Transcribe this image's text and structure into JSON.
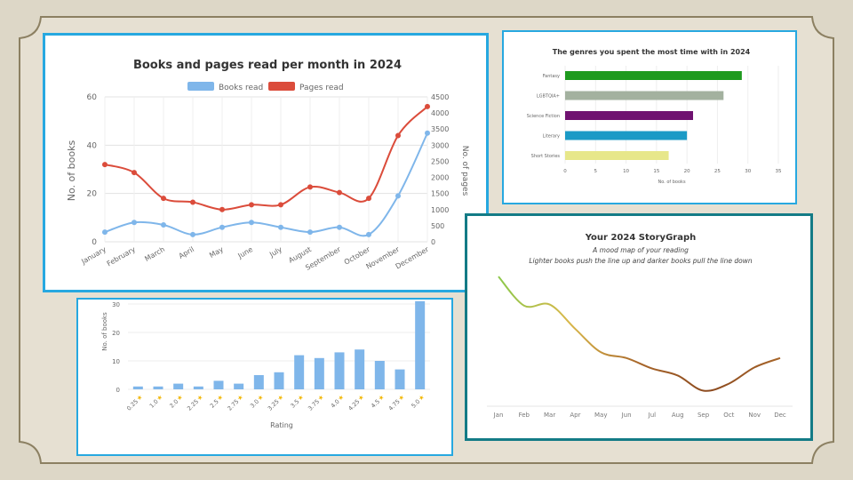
{
  "chart_data": [
    {
      "type": "line",
      "title": "Books and pages read per month in 2024",
      "ylabel": "No. of books",
      "y2label": "No. of pages",
      "ylim": [
        0,
        60
      ],
      "y2lim": [
        0,
        4500
      ],
      "yticks": [
        "0",
        "20",
        "40",
        "60"
      ],
      "y2ticks": [
        "0",
        "500",
        "1000",
        "1500",
        "2000",
        "2500",
        "3000",
        "3500",
        "4000",
        "4500"
      ],
      "categories": [
        "January",
        "February",
        "March",
        "April",
        "May",
        "June",
        "July",
        "August",
        "September",
        "October",
        "November",
        "December"
      ],
      "series": [
        {
          "name": "Books read",
          "axis": "left",
          "color": "#7fb6ea",
          "values": [
            4,
            8,
            7,
            3,
            6,
            8,
            6,
            4,
            6,
            3,
            19,
            45
          ]
        },
        {
          "name": "Pages read",
          "axis": "right",
          "color": "#db4c3b",
          "values": [
            2400,
            2150,
            1350,
            1230,
            1000,
            1150,
            1150,
            1700,
            1530,
            1350,
            3300,
            4200
          ]
        }
      ],
      "legend": "top"
    },
    {
      "type": "bar",
      "orientation": "horizontal",
      "title": "The genres you spent the most time with in 2024",
      "xlabel": "No. of books",
      "xlim": [
        0,
        35
      ],
      "xticks": [
        "0",
        "5",
        "10",
        "15",
        "20",
        "25",
        "30",
        "35"
      ],
      "categories": [
        "Fantasy",
        "LGBTQIA+",
        "Science Fiction",
        "Literary",
        "Short Stories"
      ],
      "values": [
        29,
        26,
        21,
        20,
        17
      ],
      "colors": [
        "#1e9a1e",
        "#a3b19f",
        "#6f1270",
        "#1b9ac6",
        "#e7e78a"
      ]
    },
    {
      "type": "bar",
      "xlabel": "Rating",
      "ylabel": "No. of books",
      "ylim": [
        0,
        30
      ],
      "yticks": [
        "0",
        "10",
        "20",
        "30"
      ],
      "categories": [
        "0.25",
        "1.0",
        "2.0",
        "2.25",
        "2.5",
        "2.75",
        "3.0",
        "3.25",
        "3.5",
        "3.75",
        "4.0",
        "4.25",
        "4.5",
        "4.75",
        "5.0"
      ],
      "values": [
        1,
        1,
        2,
        1,
        3,
        2,
        5,
        6,
        12,
        11,
        13,
        14,
        10,
        7,
        31
      ],
      "color": "#7fb6ea",
      "star_icon": "star-icon"
    },
    {
      "type": "line",
      "title": "Your 2024 StoryGraph",
      "subtitle1": "A mood map of your reading",
      "subtitle2": "Lighter books push the line up and darker books pull the line down",
      "categories": [
        "Jan",
        "Feb",
        "Mar",
        "Apr",
        "May",
        "Jun",
        "Jul",
        "Aug",
        "Sep",
        "Oct",
        "Nov",
        "Dec"
      ],
      "values": [
        0.9,
        0.65,
        0.66,
        0.45,
        0.25,
        0.2,
        0.11,
        0.05,
        -0.08,
        -0.02,
        0.12,
        0.2
      ],
      "gradient": [
        "#8cc84b",
        "#d9b84a",
        "#a8662a",
        "#8c4a1f",
        "#a8662a"
      ]
    }
  ]
}
